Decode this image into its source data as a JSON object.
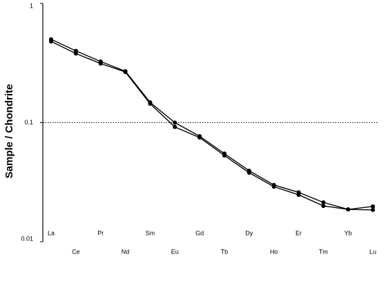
{
  "chart_data": {
    "type": "line",
    "ylabel": "Sample / Chondrite",
    "categories": [
      "La",
      "Ce",
      "Pr",
      "Nd",
      "Sm",
      "Eu",
      "Gd",
      "Tb",
      "Dy",
      "Ho",
      "Er",
      "Tm",
      "Yb",
      "Lu"
    ],
    "series": [
      {
        "color": "#000000",
        "values": [
          0.5,
          0.4,
          0.326,
          0.27,
          0.148,
          0.1,
          0.077,
          0.055,
          0.0395,
          0.03,
          0.026,
          0.0214,
          0.0187,
          0.0198
        ]
      },
      {
        "color": "#000000",
        "values": [
          0.48,
          0.38,
          0.313,
          0.266,
          0.144,
          0.092,
          0.075,
          0.053,
          0.038,
          0.029,
          0.0248,
          0.02,
          0.0187,
          0.0185
        ]
      }
    ],
    "ylim": [
      0.01,
      1
    ],
    "yticks": [
      0.01,
      0.1,
      1
    ],
    "log_y": true,
    "reference_line": 0.1
  }
}
